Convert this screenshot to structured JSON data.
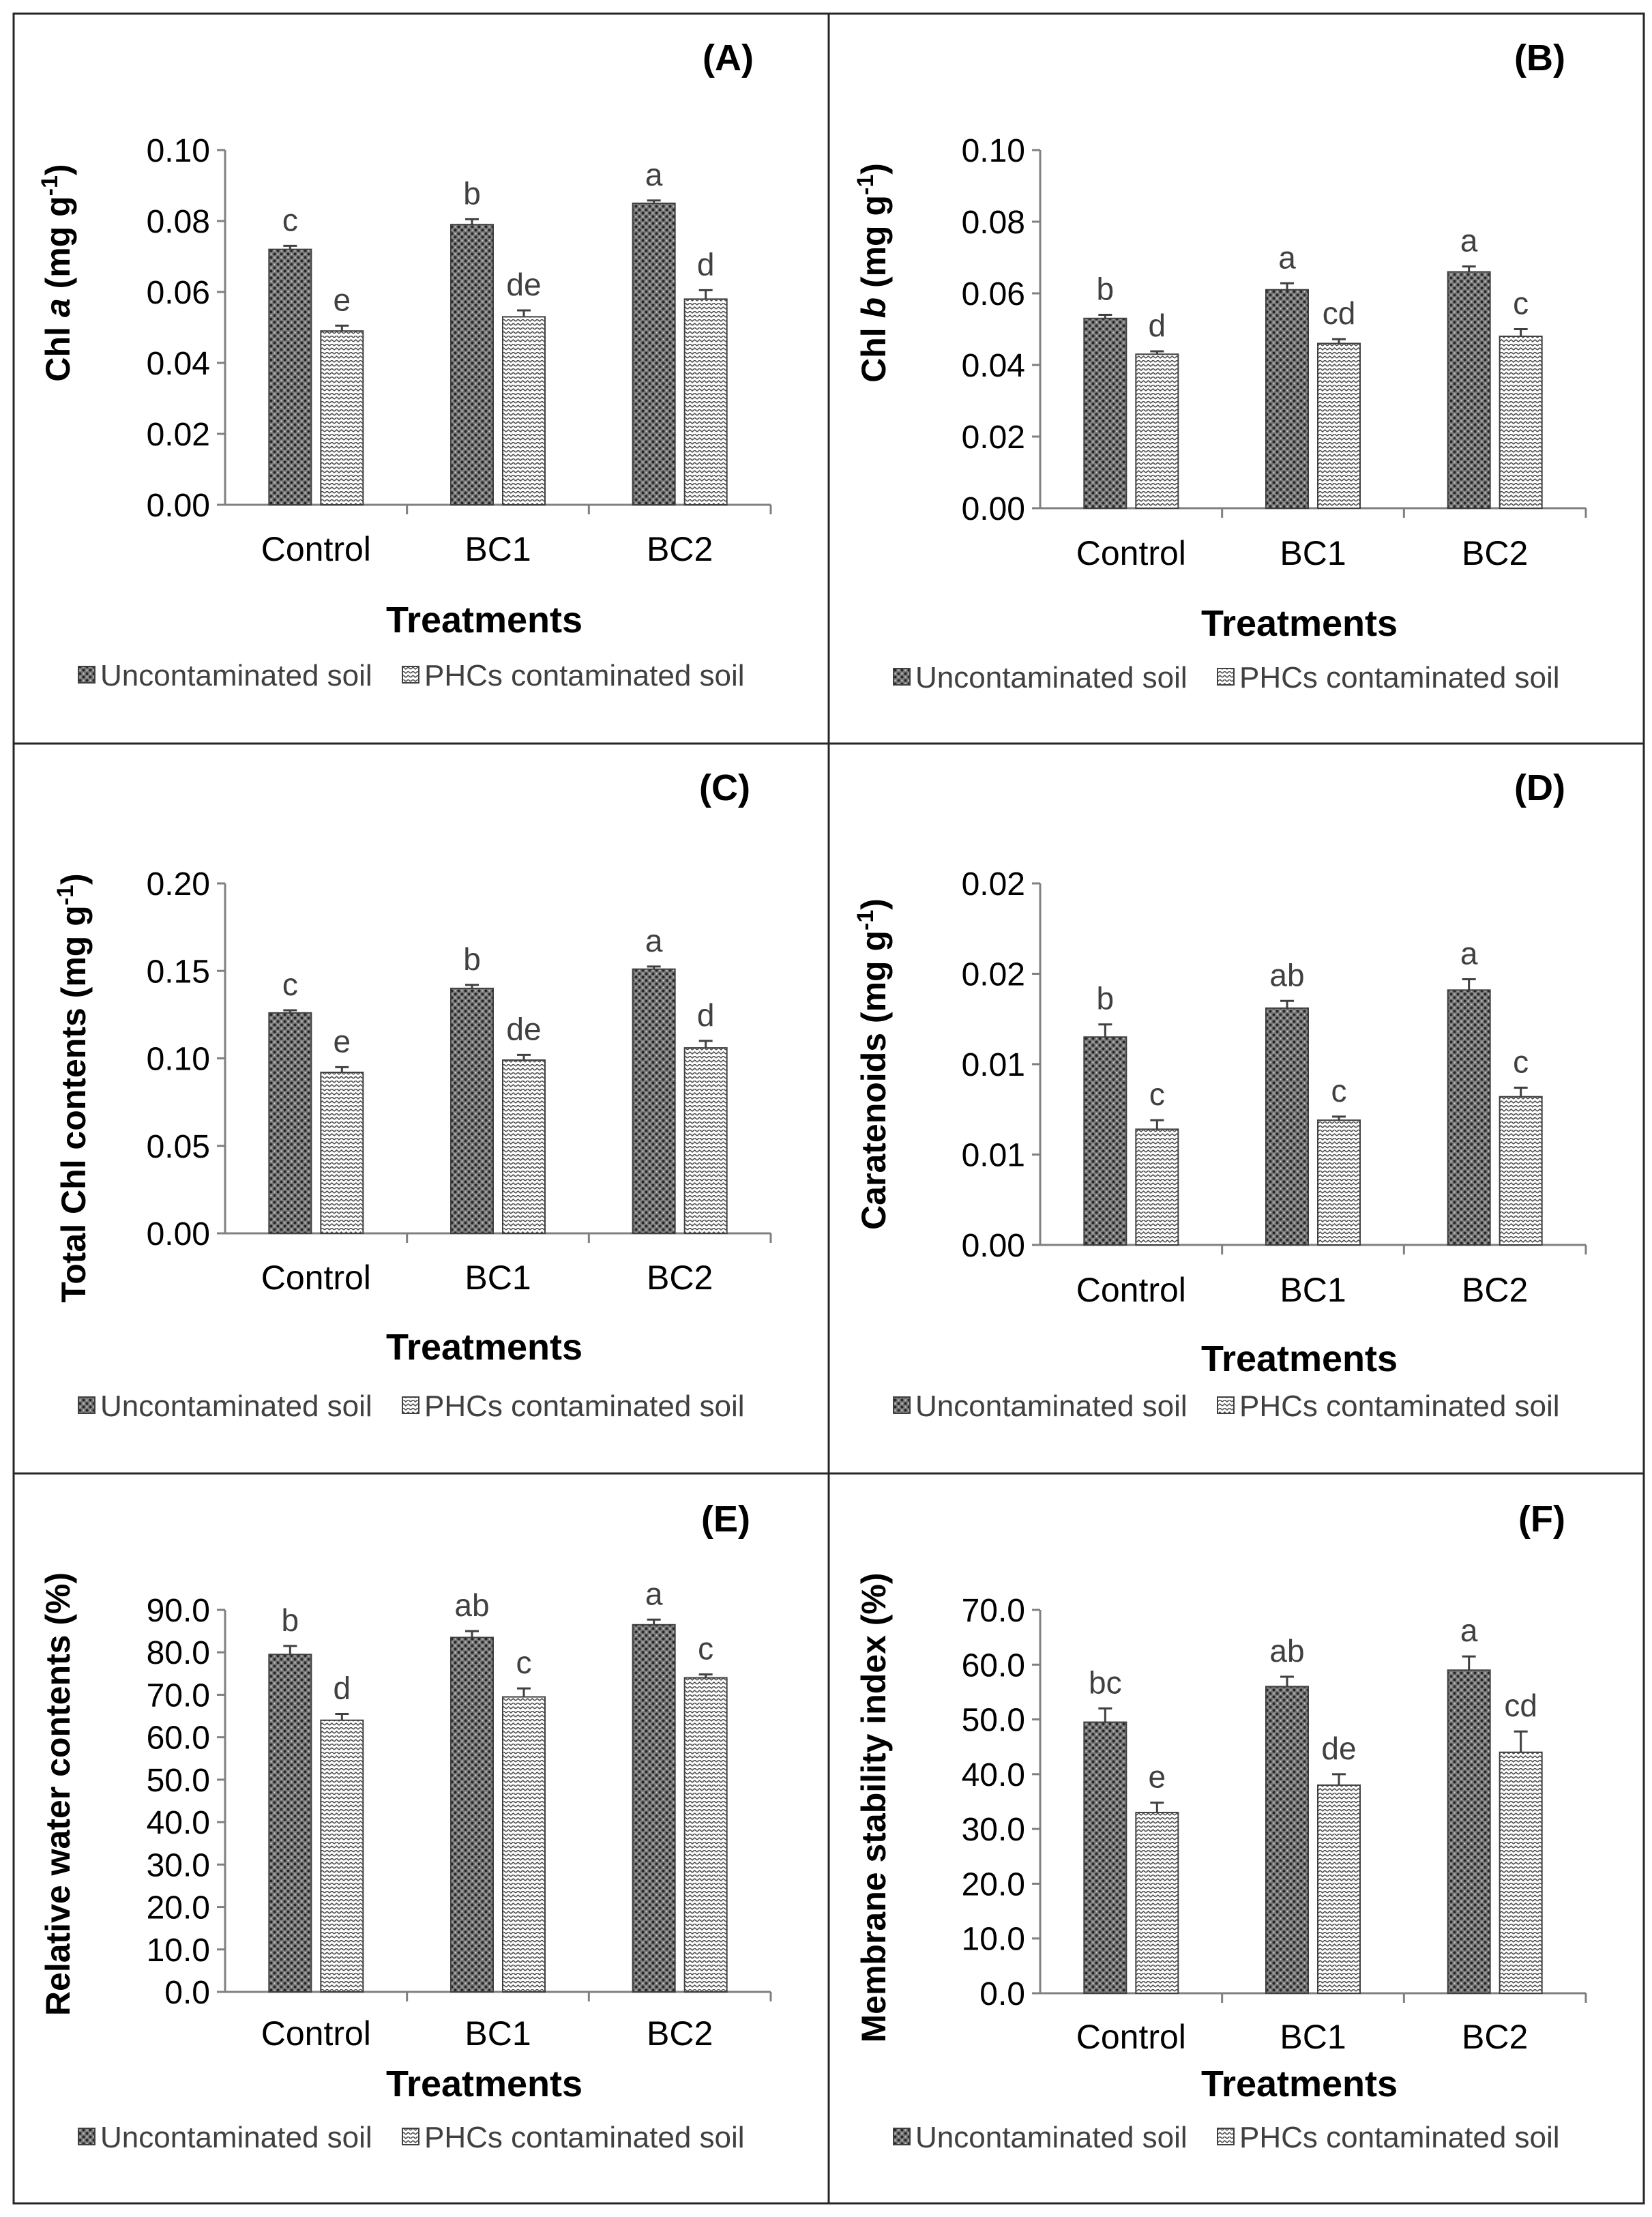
{
  "colors": {
    "frame": "#262626",
    "axis": "#808080",
    "text": "#000000",
    "sig": "#404040"
  },
  "chart_data": [
    {
      "type": "bar",
      "panel": "(A)",
      "ylabel_parts": [
        "Chl ",
        "a",
        " (mg g",
        "-1",
        ")"
      ],
      "xlabel": "Treatments",
      "categories": [
        "Control",
        "BC1",
        "BC2"
      ],
      "ylim": [
        0,
        0.1
      ],
      "yticks": [
        0.0,
        0.02,
        0.04,
        0.06,
        0.08,
        0.1
      ],
      "tick_labels": [
        "0.00",
        "0.02",
        "0.04",
        "0.06",
        "0.08",
        "0.10"
      ],
      "series": [
        {
          "name": "Uncontaminated soil",
          "values": [
            0.072,
            0.079,
            0.085
          ],
          "errors": [
            0.001,
            0.0015,
            0.0008
          ],
          "letters": [
            "c",
            "b",
            "a"
          ]
        },
        {
          "name": "PHCs contaminated soil",
          "values": [
            0.049,
            0.053,
            0.058
          ],
          "errors": [
            0.0015,
            0.0018,
            0.0025
          ],
          "letters": [
            "e",
            "de",
            "d"
          ]
        }
      ]
    },
    {
      "type": "bar",
      "panel": "(B)",
      "ylabel_parts": [
        "Chl ",
        "b",
        " (mg g",
        "-1",
        ")"
      ],
      "xlabel": "Treatments",
      "categories": [
        "Control",
        "BC1",
        "BC2"
      ],
      "ylim": [
        0,
        0.1
      ],
      "yticks": [
        0.0,
        0.02,
        0.04,
        0.06,
        0.08,
        0.1
      ],
      "tick_labels": [
        "0.00",
        "0.02",
        "0.04",
        "0.06",
        "0.08",
        "0.10"
      ],
      "series": [
        {
          "name": "Uncontaminated soil",
          "values": [
            0.053,
            0.061,
            0.066
          ],
          "errors": [
            0.001,
            0.0018,
            0.0015
          ],
          "letters": [
            "b",
            "a",
            "a"
          ]
        },
        {
          "name": "PHCs contaminated soil",
          "values": [
            0.043,
            0.046,
            0.048
          ],
          "errors": [
            0.0008,
            0.0012,
            0.002
          ],
          "letters": [
            "d",
            "cd",
            "c"
          ]
        }
      ]
    },
    {
      "type": "bar",
      "panel": "(C)",
      "ylabel_parts": [
        "Total Chl contents (mg g",
        "-1",
        ")"
      ],
      "xlabel": "Treatments",
      "categories": [
        "Control",
        "BC1",
        "BC2"
      ],
      "ylim": [
        0,
        0.2
      ],
      "yticks": [
        0.0,
        0.05,
        0.1,
        0.15,
        0.2
      ],
      "tick_labels": [
        "0.00",
        "0.05",
        "0.10",
        "0.15",
        "0.20"
      ],
      "series": [
        {
          "name": "Uncontaminated soil",
          "values": [
            0.126,
            0.14,
            0.151
          ],
          "errors": [
            0.0015,
            0.002,
            0.0015
          ],
          "letters": [
            "c",
            "b",
            "a"
          ]
        },
        {
          "name": "PHCs contaminated soil",
          "values": [
            0.092,
            0.099,
            0.106
          ],
          "errors": [
            0.003,
            0.003,
            0.004
          ],
          "letters": [
            "e",
            "de",
            "d"
          ]
        }
      ]
    },
    {
      "type": "bar",
      "panel": "(D)",
      "ylabel_parts": [
        "Caratenoids (mg g",
        "-1",
        ")"
      ],
      "xlabel": "Treatments",
      "categories": [
        "Control",
        "BC1",
        "BC2"
      ],
      "ylim": [
        0,
        0.02
      ],
      "yticks": [
        0,
        0.005,
        0.01,
        0.015,
        0.02
      ],
      "tick_labels": [
        "0.00",
        "0.01",
        "0.01",
        "0.02",
        "0.02"
      ],
      "series": [
        {
          "name": "Uncontaminated soil",
          "values": [
            0.0115,
            0.0131,
            0.0141
          ],
          "errors": [
            0.0007,
            0.0004,
            0.0006
          ],
          "letters": [
            "b",
            "ab",
            "a"
          ]
        },
        {
          "name": "PHCs contaminated soil",
          "values": [
            0.0064,
            0.0069,
            0.0082
          ],
          "errors": [
            0.0005,
            0.0002,
            0.0005
          ],
          "letters": [
            "c",
            "c",
            "c"
          ]
        }
      ]
    },
    {
      "type": "bar",
      "panel": "(E)",
      "ylabel_parts": [
        "Relative water contents (%)"
      ],
      "xlabel": "Treatments",
      "categories": [
        "Control",
        "BC1",
        "BC2"
      ],
      "ylim": [
        0,
        90
      ],
      "yticks": [
        0,
        10,
        20,
        30,
        40,
        50,
        60,
        70,
        80,
        90
      ],
      "tick_labels": [
        "0.0",
        "10.0",
        "20.0",
        "30.0",
        "40.0",
        "50.0",
        "60.0",
        "70.0",
        "80.0",
        "90.0"
      ],
      "series": [
        {
          "name": "Uncontaminated soil",
          "values": [
            79.5,
            83.5,
            86.5
          ],
          "errors": [
            2.0,
            1.5,
            1.2
          ],
          "letters": [
            "b",
            "ab",
            "a"
          ]
        },
        {
          "name": "PHCs contaminated soil",
          "values": [
            64.0,
            69.5,
            74.0
          ],
          "errors": [
            1.5,
            2.0,
            0.8
          ],
          "letters": [
            "d",
            "c",
            "c"
          ]
        }
      ]
    },
    {
      "type": "bar",
      "panel": "(F)",
      "ylabel_parts": [
        "Membrane stability index (%)"
      ],
      "xlabel": "Treatments",
      "categories": [
        "Control",
        "BC1",
        "BC2"
      ],
      "ylim": [
        0,
        70
      ],
      "yticks": [
        0,
        10,
        20,
        30,
        40,
        50,
        60,
        70
      ],
      "tick_labels": [
        "0.0",
        "10.0",
        "20.0",
        "30.0",
        "40.0",
        "50.0",
        "60.0",
        "70.0"
      ],
      "series": [
        {
          "name": "Uncontaminated soil",
          "values": [
            49.5,
            56.0,
            59.0
          ],
          "errors": [
            2.5,
            1.8,
            2.5
          ],
          "letters": [
            "bc",
            "ab",
            "a"
          ]
        },
        {
          "name": "PHCs contaminated soil",
          "values": [
            33.0,
            38.0,
            44.0
          ],
          "errors": [
            1.8,
            2.0,
            3.8
          ],
          "letters": [
            "e",
            "de",
            "cd"
          ]
        }
      ]
    }
  ]
}
